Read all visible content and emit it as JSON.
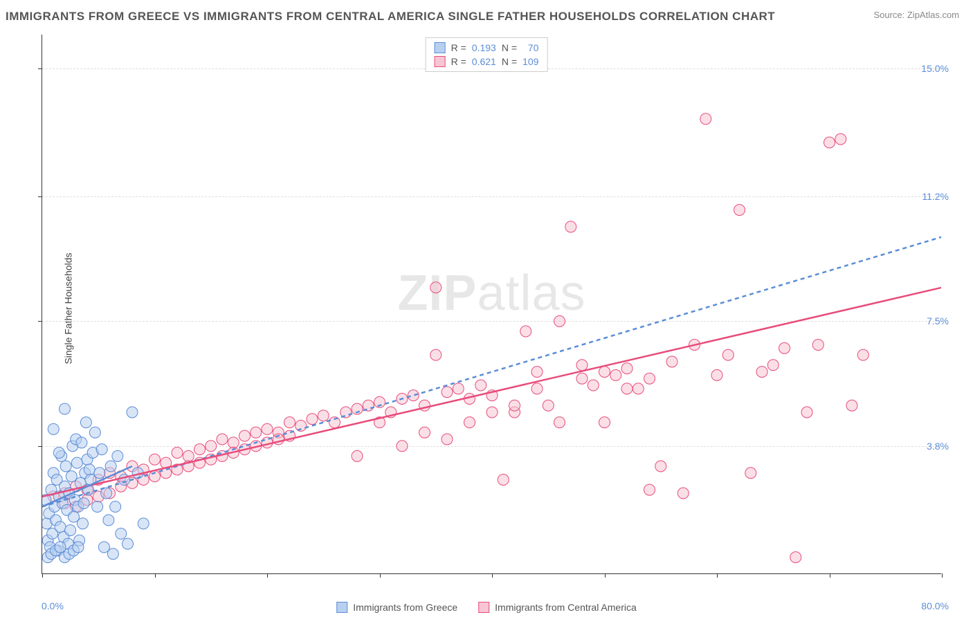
{
  "title": "IMMIGRANTS FROM GREECE VS IMMIGRANTS FROM CENTRAL AMERICA SINGLE FATHER HOUSEHOLDS CORRELATION CHART",
  "source": "Source: ZipAtlas.com",
  "watermark_a": "ZIP",
  "watermark_b": "atlas",
  "y_axis_label": "Single Father Households",
  "x_axis": {
    "min_label": "0.0%",
    "max_label": "80.0%",
    "xlim": [
      0,
      80
    ],
    "ticks": [
      0,
      10,
      20,
      30,
      40,
      50,
      60,
      70,
      80
    ]
  },
  "y_axis": {
    "ylim": [
      0,
      16
    ],
    "grid": [
      {
        "val": 3.8,
        "label": "3.8%"
      },
      {
        "val": 7.5,
        "label": "7.5%"
      },
      {
        "val": 11.2,
        "label": "11.2%"
      },
      {
        "val": 15.0,
        "label": "15.0%"
      }
    ]
  },
  "series": {
    "greece": {
      "label": "Immigrants from Greece",
      "color_fill": "#b8d0f0",
      "color_stroke": "#5b8dd6",
      "r_label": "R = ",
      "r_value": "0.193",
      "n_label": "   N = ",
      "n_value": "  70",
      "trend": {
        "x1": 0,
        "y1": 2.0,
        "x2": 8,
        "y2": 3.2,
        "dashed": false
      },
      "diagonal": {
        "x1": 0,
        "y1": 2.0,
        "x2": 80,
        "y2": 10.0,
        "dashed": true
      },
      "points": [
        [
          0.3,
          2.2
        ],
        [
          0.4,
          1.5
        ],
        [
          0.5,
          1.0
        ],
        [
          0.6,
          1.8
        ],
        [
          0.7,
          0.8
        ],
        [
          0.8,
          2.5
        ],
        [
          0.9,
          1.2
        ],
        [
          1.0,
          3.0
        ],
        [
          1.1,
          2.0
        ],
        [
          1.2,
          1.6
        ],
        [
          1.3,
          2.8
        ],
        [
          1.4,
          0.7
        ],
        [
          1.5,
          2.3
        ],
        [
          1.6,
          1.4
        ],
        [
          1.7,
          3.5
        ],
        [
          1.8,
          2.1
        ],
        [
          1.9,
          1.1
        ],
        [
          2.0,
          2.6
        ],
        [
          2.1,
          3.2
        ],
        [
          2.2,
          1.9
        ],
        [
          2.3,
          0.9
        ],
        [
          2.4,
          2.4
        ],
        [
          2.5,
          1.3
        ],
        [
          2.6,
          2.9
        ],
        [
          2.7,
          3.8
        ],
        [
          2.8,
          1.7
        ],
        [
          2.9,
          2.2
        ],
        [
          3.0,
          4.0
        ],
        [
          3.1,
          3.3
        ],
        [
          3.2,
          2.0
        ],
        [
          3.3,
          1.0
        ],
        [
          3.4,
          2.7
        ],
        [
          3.5,
          3.9
        ],
        [
          3.6,
          1.5
        ],
        [
          3.7,
          2.1
        ],
        [
          3.8,
          3.0
        ],
        [
          3.9,
          4.5
        ],
        [
          4.0,
          3.4
        ],
        [
          4.1,
          2.5
        ],
        [
          4.2,
          3.1
        ],
        [
          4.3,
          2.8
        ],
        [
          4.5,
          3.6
        ],
        [
          4.7,
          4.2
        ],
        [
          4.9,
          2.0
        ],
        [
          5.1,
          3.0
        ],
        [
          5.3,
          3.7
        ],
        [
          5.5,
          0.8
        ],
        [
          5.7,
          2.4
        ],
        [
          5.9,
          1.6
        ],
        [
          6.1,
          3.2
        ],
        [
          6.3,
          0.6
        ],
        [
          6.5,
          2.0
        ],
        [
          6.7,
          3.5
        ],
        [
          7.0,
          1.2
        ],
        [
          7.3,
          2.8
        ],
        [
          7.6,
          0.9
        ],
        [
          8.0,
          4.8
        ],
        [
          8.5,
          3.0
        ],
        [
          9.0,
          1.5
        ],
        [
          1.0,
          4.3
        ],
        [
          1.5,
          3.6
        ],
        [
          2.0,
          4.9
        ],
        [
          0.5,
          0.5
        ],
        [
          0.8,
          0.6
        ],
        [
          1.2,
          0.7
        ],
        [
          1.6,
          0.8
        ],
        [
          2.0,
          0.5
        ],
        [
          2.4,
          0.6
        ],
        [
          2.8,
          0.7
        ],
        [
          3.2,
          0.8
        ]
      ]
    },
    "central_america": {
      "label": "Immigrants from Central America",
      "color_fill": "#f7c5d4",
      "color_stroke": "#e84c7a",
      "r_label": "R = ",
      "r_value": "0.621",
      "n_label": "   N = ",
      "n_value": "109",
      "trend": {
        "x1": 0,
        "y1": 2.3,
        "x2": 80,
        "y2": 8.5,
        "dashed": false
      },
      "points": [
        [
          1,
          2.3
        ],
        [
          2,
          2.4
        ],
        [
          3,
          2.6
        ],
        [
          4,
          2.5
        ],
        [
          5,
          2.8
        ],
        [
          6,
          3.0
        ],
        [
          7,
          2.9
        ],
        [
          8,
          3.2
        ],
        [
          9,
          3.1
        ],
        [
          10,
          3.4
        ],
        [
          11,
          3.3
        ],
        [
          12,
          3.6
        ],
        [
          13,
          3.5
        ],
        [
          14,
          3.7
        ],
        [
          15,
          3.8
        ],
        [
          16,
          4.0
        ],
        [
          17,
          3.9
        ],
        [
          18,
          4.1
        ],
        [
          19,
          4.2
        ],
        [
          20,
          4.3
        ],
        [
          21,
          4.2
        ],
        [
          22,
          4.5
        ],
        [
          23,
          4.4
        ],
        [
          24,
          4.6
        ],
        [
          25,
          4.7
        ],
        [
          26,
          4.5
        ],
        [
          27,
          4.8
        ],
        [
          28,
          4.9
        ],
        [
          29,
          5.0
        ],
        [
          30,
          5.1
        ],
        [
          31,
          4.8
        ],
        [
          32,
          5.2
        ],
        [
          33,
          5.3
        ],
        [
          34,
          5.0
        ],
        [
          35,
          6.5
        ],
        [
          35,
          8.5
        ],
        [
          36,
          5.4
        ],
        [
          37,
          5.5
        ],
        [
          38,
          5.2
        ],
        [
          39,
          5.6
        ],
        [
          40,
          5.3
        ],
        [
          41,
          2.8
        ],
        [
          42,
          4.8
        ],
        [
          43,
          7.2
        ],
        [
          44,
          5.5
        ],
        [
          45,
          5.0
        ],
        [
          46,
          7.5
        ],
        [
          47,
          10.3
        ],
        [
          48,
          5.8
        ],
        [
          49,
          5.6
        ],
        [
          50,
          6.0
        ],
        [
          51,
          5.9
        ],
        [
          52,
          6.1
        ],
        [
          53,
          5.5
        ],
        [
          54,
          2.5
        ],
        [
          55,
          3.2
        ],
        [
          56,
          6.3
        ],
        [
          57,
          2.4
        ],
        [
          58,
          6.8
        ],
        [
          59,
          13.5
        ],
        [
          60,
          5.9
        ],
        [
          61,
          6.5
        ],
        [
          62,
          10.8
        ],
        [
          63,
          3.0
        ],
        [
          64,
          6.0
        ],
        [
          65,
          6.2
        ],
        [
          66,
          6.7
        ],
        [
          67,
          0.5
        ],
        [
          68,
          4.8
        ],
        [
          69,
          6.8
        ],
        [
          70,
          12.8
        ],
        [
          71,
          12.9
        ],
        [
          72,
          5.0
        ],
        [
          73,
          6.5
        ],
        [
          2,
          2.1
        ],
        [
          3,
          2.0
        ],
        [
          4,
          2.2
        ],
        [
          5,
          2.3
        ],
        [
          6,
          2.4
        ],
        [
          7,
          2.6
        ],
        [
          8,
          2.7
        ],
        [
          9,
          2.8
        ],
        [
          10,
          2.9
        ],
        [
          11,
          3.0
        ],
        [
          12,
          3.1
        ],
        [
          13,
          3.2
        ],
        [
          14,
          3.3
        ],
        [
          15,
          3.4
        ],
        [
          16,
          3.5
        ],
        [
          17,
          3.6
        ],
        [
          18,
          3.7
        ],
        [
          19,
          3.8
        ],
        [
          20,
          3.9
        ],
        [
          21,
          4.0
        ],
        [
          22,
          4.1
        ],
        [
          28,
          3.5
        ],
        [
          30,
          4.5
        ],
        [
          32,
          3.8
        ],
        [
          34,
          4.2
        ],
        [
          36,
          4.0
        ],
        [
          38,
          4.5
        ],
        [
          40,
          4.8
        ],
        [
          42,
          5.0
        ],
        [
          44,
          6.0
        ],
        [
          46,
          4.5
        ],
        [
          48,
          6.2
        ],
        [
          50,
          4.5
        ],
        [
          52,
          5.5
        ],
        [
          54,
          5.8
        ]
      ]
    }
  },
  "style": {
    "marker_radius": 8,
    "marker_opacity": 0.55,
    "trend_width": 2.5
  }
}
